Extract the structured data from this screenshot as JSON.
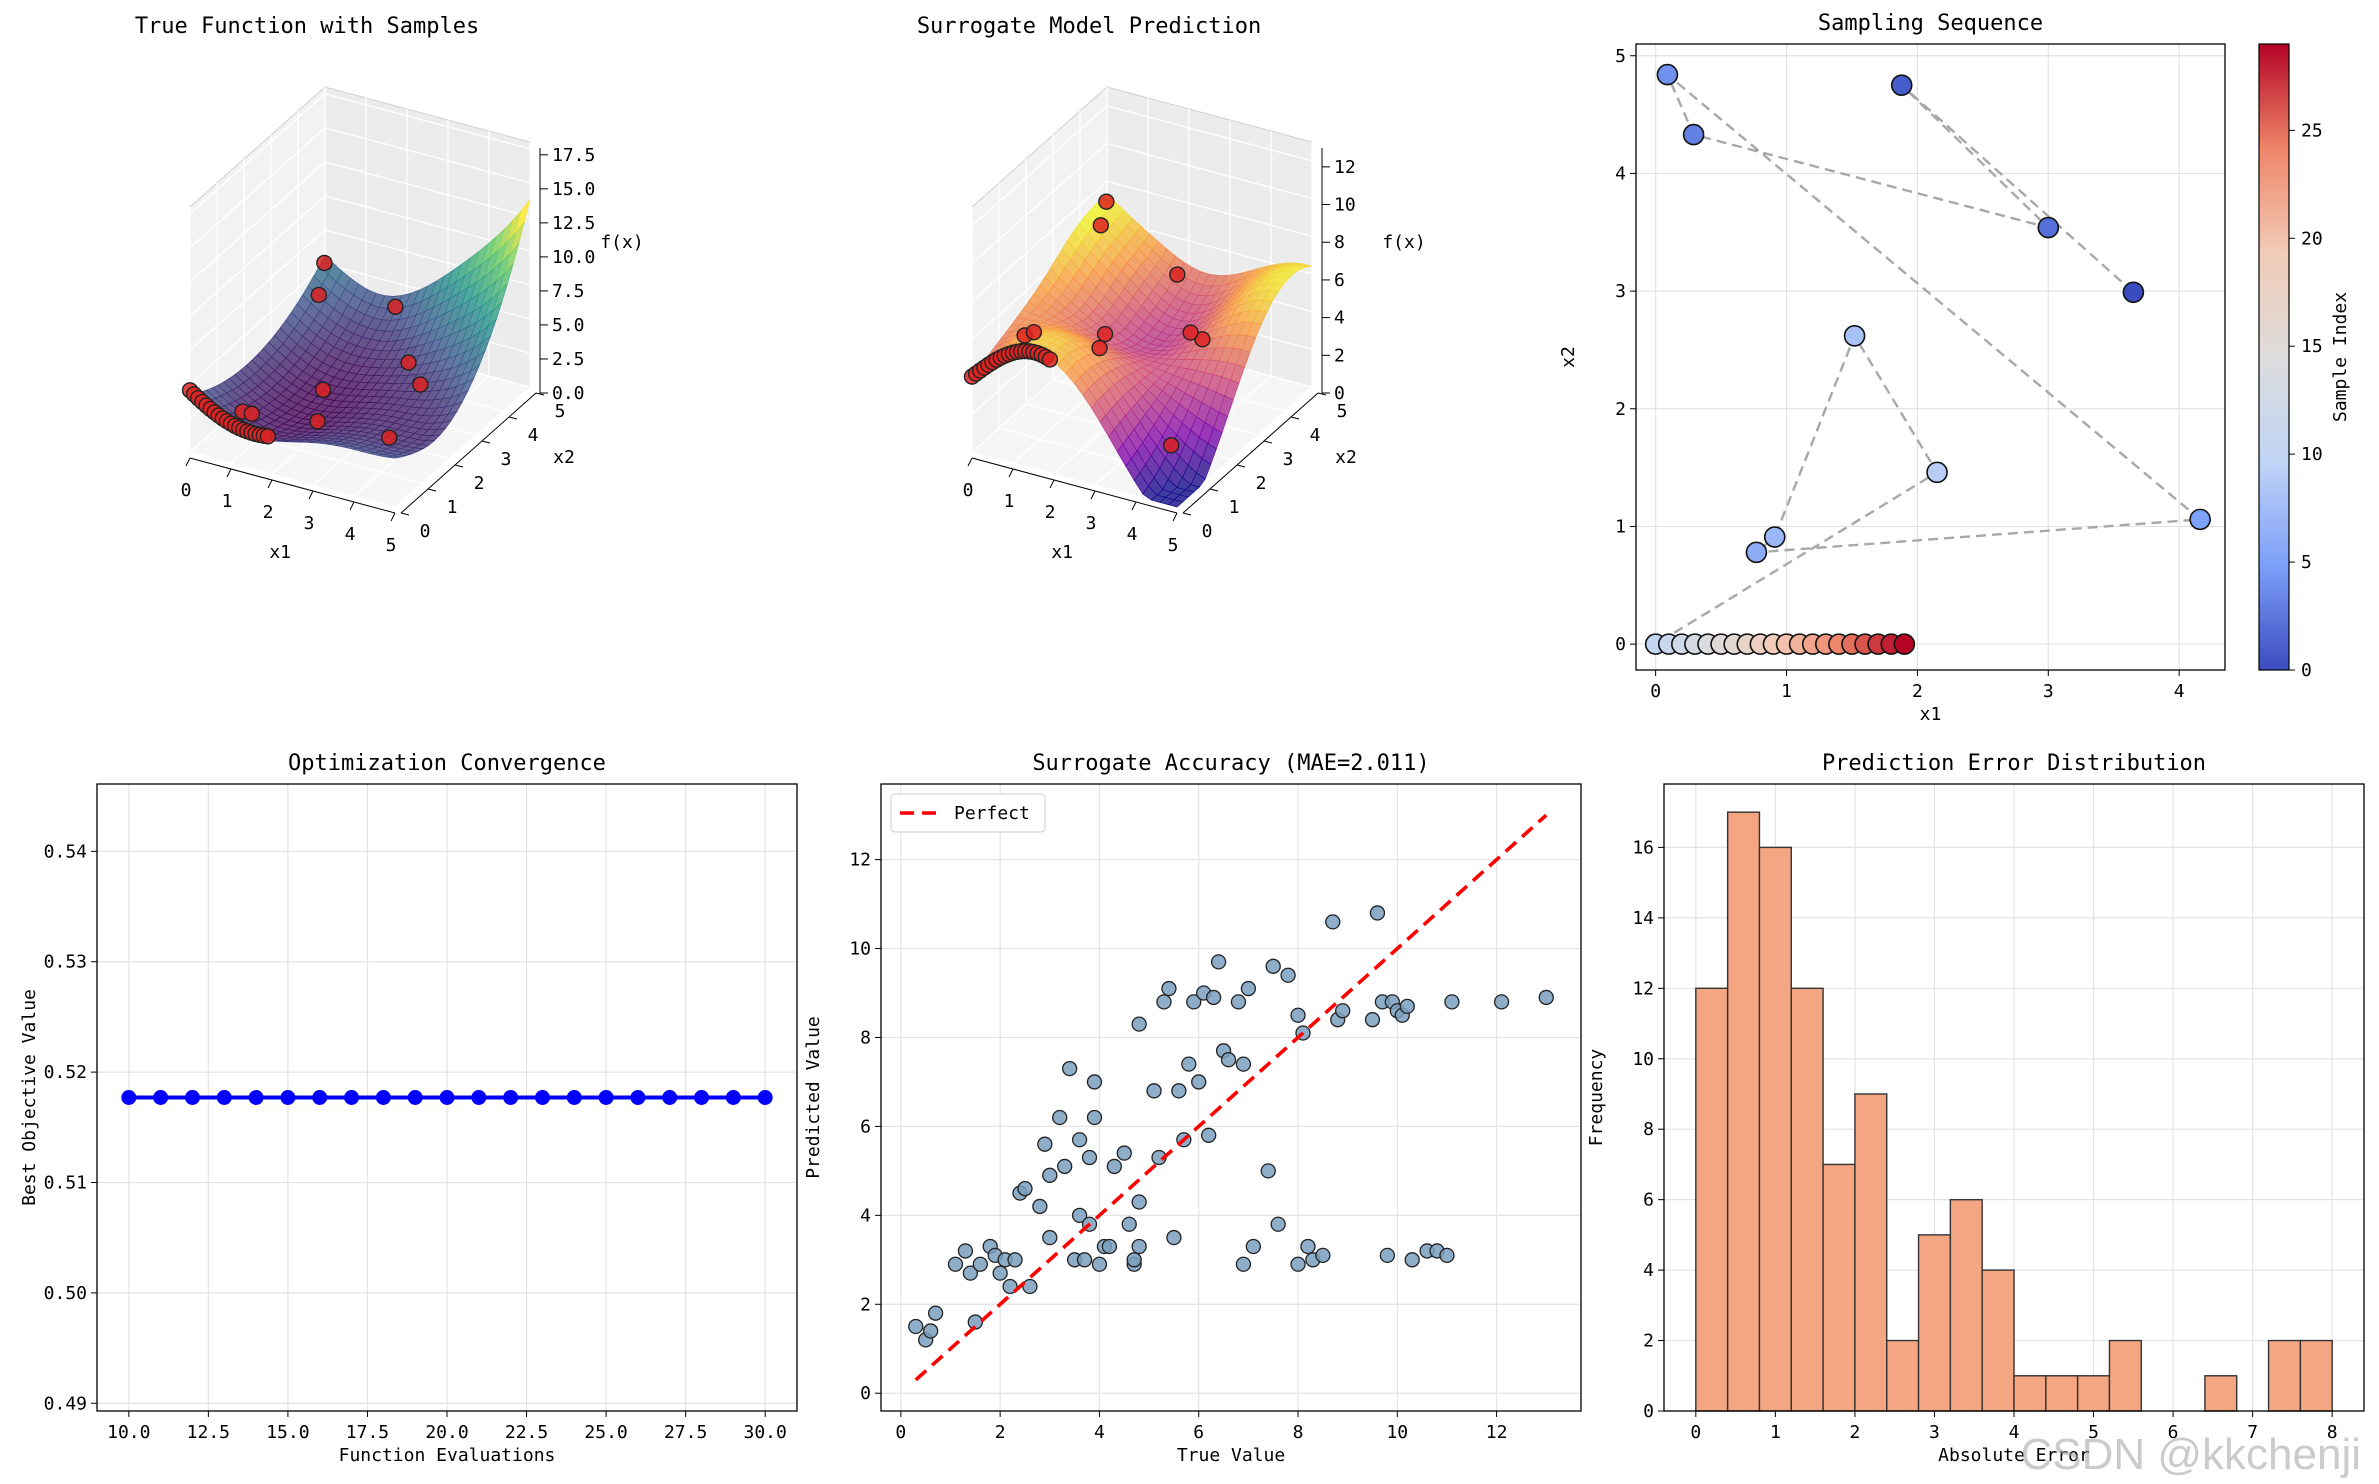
{
  "watermark": "CSDN @kkchenji",
  "chart_data": [
    {
      "type": "surface3d",
      "title": "True Function with Samples",
      "xlabel": "x1",
      "ylabel": "x2",
      "zlabel": "f(x)",
      "x_ticks": [
        "0",
        "1",
        "2",
        "3",
        "4",
        "5"
      ],
      "y_ticks": [
        "0",
        "1",
        "2",
        "3",
        "4",
        "5"
      ],
      "z_ticks": [
        "0.0",
        "2.5",
        "5.0",
        "7.5",
        "10.0",
        "12.5",
        "15.0",
        "17.5"
      ],
      "zlim": [
        0,
        18
      ],
      "colormap": "viridis",
      "samples_color": "#dd2222"
    },
    {
      "type": "surface3d",
      "title": "Surrogate Model Prediction",
      "xlabel": "x1",
      "ylabel": "x2",
      "zlabel": "f(x)",
      "x_ticks": [
        "0",
        "1",
        "2",
        "3",
        "4",
        "5"
      ],
      "y_ticks": [
        "0",
        "1",
        "2",
        "3",
        "4",
        "5"
      ],
      "z_ticks": [
        "0",
        "2",
        "4",
        "6",
        "8",
        "10",
        "12"
      ],
      "zlim": [
        0,
        13
      ],
      "colormap": "plasma",
      "samples_color": "#dd2222"
    },
    {
      "type": "scatter",
      "title": "Sampling Sequence",
      "xlabel": "x1",
      "ylabel": "x2",
      "xlim": [
        -0.15,
        4.35
      ],
      "ylim": [
        -0.22,
        5.1
      ],
      "x_ticks": [
        0,
        1,
        2,
        3,
        4
      ],
      "y_ticks": [
        0,
        1,
        2,
        3,
        4,
        5
      ],
      "colorbar_label": "Sample Index",
      "colorbar_ticks": [
        0,
        5,
        10,
        15,
        20,
        25
      ],
      "colorbar_range": [
        0,
        29
      ],
      "points": [
        {
          "i": 0,
          "x": 3.65,
          "y": 2.99
        },
        {
          "i": 1,
          "x": 1.88,
          "y": 4.75
        },
        {
          "i": 2,
          "x": 3.0,
          "y": 3.54
        },
        {
          "i": 3,
          "x": 0.29,
          "y": 4.33
        },
        {
          "i": 4,
          "x": 0.09,
          "y": 4.84
        },
        {
          "i": 5,
          "x": 4.16,
          "y": 1.06
        },
        {
          "i": 6,
          "x": 0.77,
          "y": 0.78
        },
        {
          "i": 7,
          "x": 0.91,
          "y": 0.91
        },
        {
          "i": 8,
          "x": 1.52,
          "y": 2.62
        },
        {
          "i": 9,
          "x": 2.15,
          "y": 1.46
        },
        {
          "i": 10,
          "x": 0.0,
          "y": 0.0
        },
        {
          "i": 11,
          "x": 0.1,
          "y": 0.0
        },
        {
          "i": 12,
          "x": 0.2,
          "y": 0.0
        },
        {
          "i": 13,
          "x": 0.3,
          "y": 0.0
        },
        {
          "i": 14,
          "x": 0.4,
          "y": 0.0
        },
        {
          "i": 15,
          "x": 0.5,
          "y": 0.0
        },
        {
          "i": 16,
          "x": 0.6,
          "y": 0.0
        },
        {
          "i": 17,
          "x": 0.7,
          "y": 0.0
        },
        {
          "i": 18,
          "x": 0.8,
          "y": 0.0
        },
        {
          "i": 19,
          "x": 0.9,
          "y": 0.0
        },
        {
          "i": 20,
          "x": 1.0,
          "y": 0.0
        },
        {
          "i": 21,
          "x": 1.1,
          "y": 0.0
        },
        {
          "i": 22,
          "x": 1.2,
          "y": 0.0
        },
        {
          "i": 23,
          "x": 1.3,
          "y": 0.0
        },
        {
          "i": 24,
          "x": 1.4,
          "y": 0.0
        },
        {
          "i": 25,
          "x": 1.5,
          "y": 0.0
        },
        {
          "i": 26,
          "x": 1.6,
          "y": 0.0
        },
        {
          "i": 27,
          "x": 1.7,
          "y": 0.0
        },
        {
          "i": 28,
          "x": 1.8,
          "y": 0.0
        },
        {
          "i": 29,
          "x": 1.9,
          "y": 0.0
        }
      ]
    },
    {
      "type": "line",
      "title": "Optimization Convergence",
      "xlabel": "Function Evaluations",
      "ylabel": "Best Objective Value",
      "xlim": [
        9.0,
        31.0
      ],
      "ylim": [
        0.4893,
        0.5461
      ],
      "x_ticks": [
        "10.0",
        "12.5",
        "15.0",
        "17.5",
        "20.0",
        "22.5",
        "25.0",
        "27.5",
        "30.0"
      ],
      "y_ticks": [
        "0.49",
        "0.50",
        "0.51",
        "0.52",
        "0.53",
        "0.54"
      ],
      "x": [
        10,
        11,
        12,
        13,
        14,
        15,
        16,
        17,
        18,
        19,
        20,
        21,
        22,
        23,
        24,
        25,
        26,
        27,
        28,
        29,
        30
      ],
      "y": [
        0.5177,
        0.5177,
        0.5177,
        0.5177,
        0.5177,
        0.5177,
        0.5177,
        0.5177,
        0.5177,
        0.5177,
        0.5177,
        0.5177,
        0.5177,
        0.5177,
        0.5177,
        0.5177,
        0.5177,
        0.5177,
        0.5177,
        0.5177,
        0.5177
      ],
      "color": "#0000ff"
    },
    {
      "type": "scatter",
      "title": "Surrogate Accuracy (MAE=2.011)",
      "xlabel": "True Value",
      "ylabel": "Predicted Value",
      "xlim": [
        -0.4,
        13.7
      ],
      "ylim": [
        -0.4,
        13.7
      ],
      "x_ticks": [
        0,
        2,
        4,
        6,
        8,
        10,
        12
      ],
      "y_ticks": [
        0,
        2,
        4,
        6,
        8,
        10,
        12
      ],
      "legend": "Perfect",
      "diagonal": [
        0.3,
        13.0
      ],
      "points": [
        [
          0.3,
          1.5
        ],
        [
          0.5,
          1.2
        ],
        [
          0.6,
          1.4
        ],
        [
          0.7,
          1.8
        ],
        [
          1.1,
          2.9
        ],
        [
          1.3,
          3.2
        ],
        [
          1.4,
          2.7
        ],
        [
          1.5,
          1.6
        ],
        [
          1.6,
          2.9
        ],
        [
          1.8,
          3.3
        ],
        [
          1.9,
          3.1
        ],
        [
          2.0,
          2.7
        ],
        [
          2.1,
          3.0
        ],
        [
          2.2,
          2.4
        ],
        [
          2.3,
          3.0
        ],
        [
          2.4,
          4.5
        ],
        [
          2.5,
          4.6
        ],
        [
          2.6,
          2.4
        ],
        [
          2.8,
          4.2
        ],
        [
          2.9,
          5.6
        ],
        [
          3.0,
          4.9
        ],
        [
          3.0,
          3.5
        ],
        [
          3.2,
          6.2
        ],
        [
          3.3,
          5.1
        ],
        [
          3.4,
          7.3
        ],
        [
          3.5,
          3.0
        ],
        [
          3.6,
          4.0
        ],
        [
          3.6,
          5.7
        ],
        [
          3.7,
          3.0
        ],
        [
          3.8,
          5.3
        ],
        [
          3.8,
          3.8
        ],
        [
          3.9,
          6.2
        ],
        [
          3.9,
          7.0
        ],
        [
          4.0,
          2.9
        ],
        [
          4.1,
          3.3
        ],
        [
          4.2,
          3.3
        ],
        [
          4.3,
          5.1
        ],
        [
          4.5,
          5.4
        ],
        [
          4.6,
          3.8
        ],
        [
          4.7,
          2.9
        ],
        [
          4.7,
          3.0
        ],
        [
          4.8,
          4.3
        ],
        [
          4.8,
          3.3
        ],
        [
          4.8,
          8.3
        ],
        [
          5.1,
          6.8
        ],
        [
          5.2,
          5.3
        ],
        [
          5.3,
          8.8
        ],
        [
          5.4,
          9.1
        ],
        [
          5.5,
          3.5
        ],
        [
          5.6,
          6.8
        ],
        [
          5.7,
          5.7
        ],
        [
          5.8,
          7.4
        ],
        [
          5.9,
          8.8
        ],
        [
          6.0,
          7.0
        ],
        [
          6.1,
          9.0
        ],
        [
          6.2,
          5.8
        ],
        [
          6.3,
          8.9
        ],
        [
          6.4,
          9.7
        ],
        [
          6.5,
          7.7
        ],
        [
          6.6,
          7.5
        ],
        [
          6.8,
          8.8
        ],
        [
          6.9,
          7.4
        ],
        [
          6.9,
          2.9
        ],
        [
          7.0,
          9.1
        ],
        [
          7.1,
          3.3
        ],
        [
          7.4,
          5.0
        ],
        [
          7.5,
          9.6
        ],
        [
          7.6,
          3.8
        ],
        [
          7.8,
          9.4
        ],
        [
          8.0,
          8.5
        ],
        [
          8.0,
          2.9
        ],
        [
          8.1,
          8.1
        ],
        [
          8.2,
          3.3
        ],
        [
          8.3,
          3.0
        ],
        [
          8.5,
          3.1
        ],
        [
          8.7,
          10.6
        ],
        [
          8.8,
          8.4
        ],
        [
          8.9,
          8.6
        ],
        [
          9.5,
          8.4
        ],
        [
          9.6,
          10.8
        ],
        [
          9.7,
          8.8
        ],
        [
          9.8,
          3.1
        ],
        [
          9.9,
          8.8
        ],
        [
          10.0,
          8.6
        ],
        [
          10.1,
          8.5
        ],
        [
          10.2,
          8.7
        ],
        [
          10.3,
          3.0
        ],
        [
          10.6,
          3.2
        ],
        [
          10.8,
          3.2
        ],
        [
          11.0,
          3.1
        ],
        [
          11.1,
          8.8
        ],
        [
          12.1,
          8.8
        ],
        [
          13.0,
          8.9
        ]
      ]
    },
    {
      "type": "bar",
      "title": "Prediction Error Distribution",
      "xlabel": "Absolute Error",
      "ylabel": "Frequency",
      "xlim": [
        -0.4,
        8.4
      ],
      "ylim": [
        0,
        17.8
      ],
      "x_ticks": [
        0,
        1,
        2,
        3,
        4,
        5,
        6,
        7,
        8
      ],
      "y_ticks": [
        0,
        2,
        4,
        6,
        8,
        10,
        12,
        14,
        16
      ],
      "bin_start": 0.0,
      "bin_width": 0.4,
      "values": [
        12,
        17,
        16,
        12,
        7,
        9,
        2,
        5,
        6,
        4,
        1,
        1,
        1,
        2,
        0,
        0,
        1,
        0,
        2,
        2
      ],
      "color": "#f4a582"
    }
  ]
}
